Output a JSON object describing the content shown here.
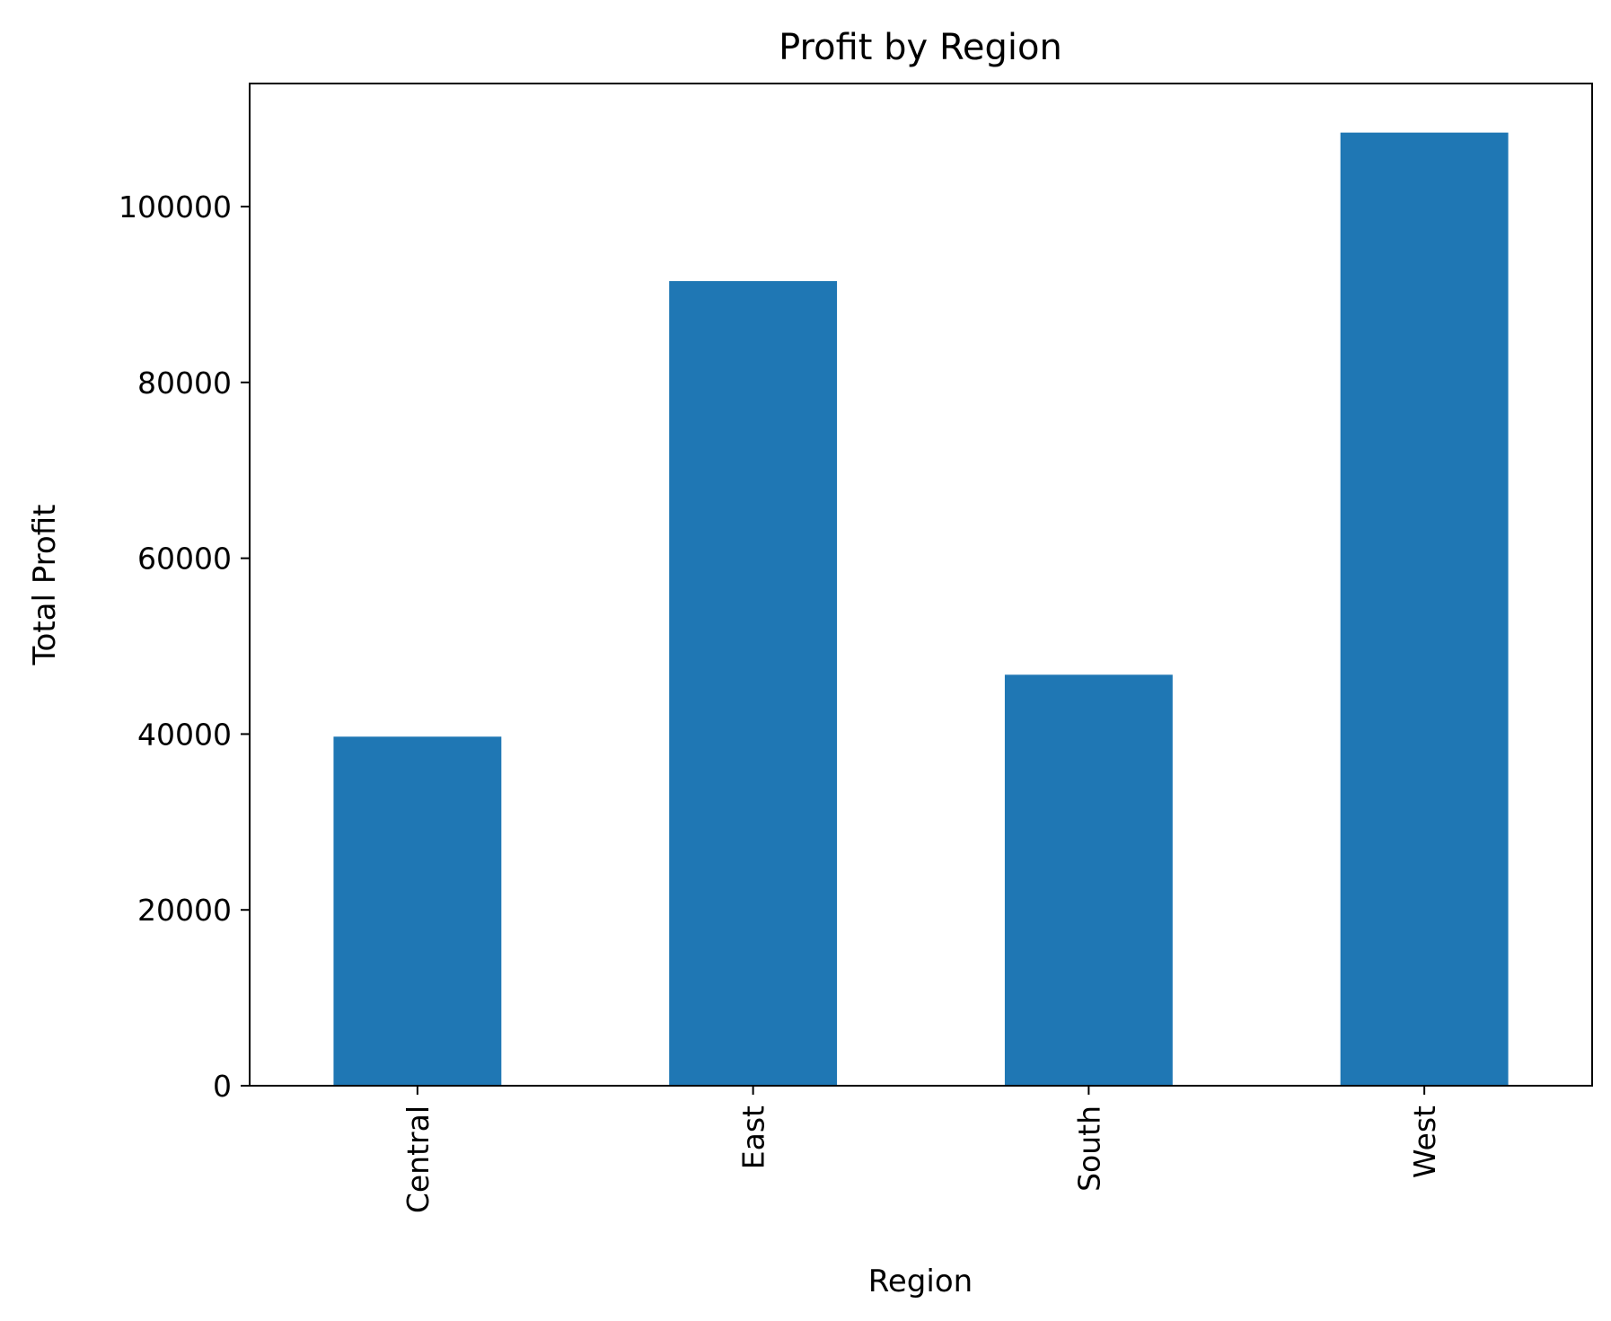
{
  "chart_data": {
    "type": "bar",
    "title": "Profit by Region",
    "xlabel": "Region",
    "ylabel": "Total Profit",
    "categories": [
      "Central",
      "East",
      "South",
      "West"
    ],
    "values": [
      39706,
      91523,
      46749,
      108418
    ],
    "ylim": [
      0,
      114000
    ],
    "yticks": [
      0,
      20000,
      40000,
      60000,
      80000,
      100000
    ],
    "ytick_labels": [
      "0",
      "20000",
      "40000",
      "60000",
      "80000",
      "100000"
    ],
    "bar_color": "#1f77b4",
    "grid": false,
    "legend": "none",
    "xtick_rotation": "vertical"
  }
}
